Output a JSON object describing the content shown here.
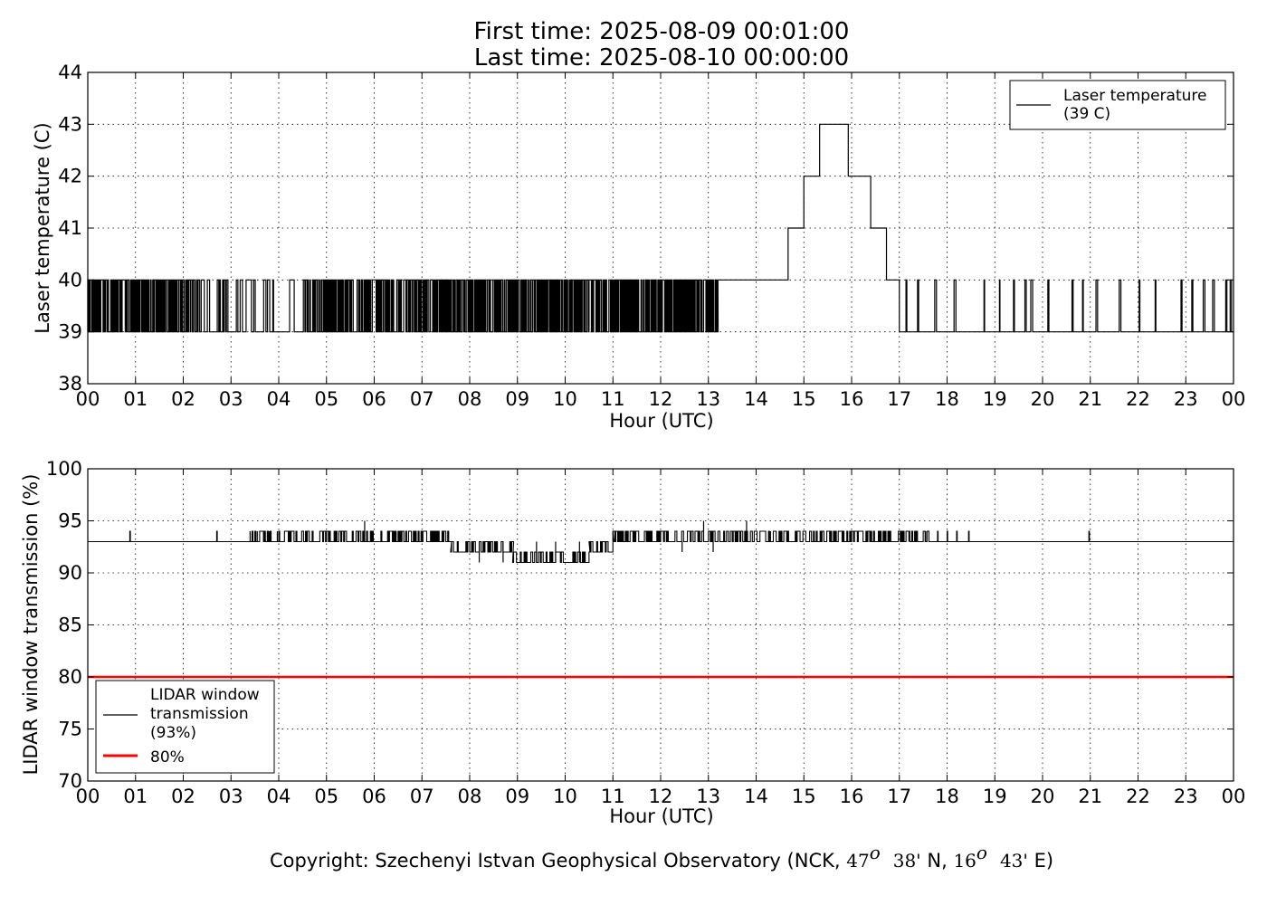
{
  "header": {
    "title_line1": "First time: 2025-08-09 00:01:00",
    "title_line2": "Last time: 2025-08-10 00:00:00"
  },
  "footer": {
    "copyright_prefix": "Copyright: Szechenyi Istvan Geophysical Observatory (NCK, ",
    "lat_deg": "47",
    "lat_sup": "o",
    "lat_min": "38'",
    "lat_hem": " N, ",
    "lon_deg": "16",
    "lon_sup": "o",
    "lon_min": "43'",
    "lon_hem": " E)"
  },
  "chart_data": [
    {
      "type": "line",
      "xlabel": "Hour (UTC)",
      "ylabel": "Laser temperature (C)",
      "xlim": [
        0,
        24
      ],
      "ylim": [
        38,
        44
      ],
      "x_ticks": [
        0,
        1,
        2,
        3,
        4,
        5,
        6,
        7,
        8,
        9,
        10,
        11,
        12,
        13,
        14,
        15,
        16,
        17,
        18,
        19,
        20,
        21,
        22,
        23,
        24
      ],
      "x_tick_labels": [
        "00",
        "01",
        "02",
        "03",
        "04",
        "05",
        "06",
        "07",
        "08",
        "09",
        "10",
        "11",
        "12",
        "13",
        "14",
        "15",
        "16",
        "17",
        "18",
        "19",
        "20",
        "21",
        "22",
        "23",
        "00"
      ],
      "y_ticks": [
        38,
        39,
        40,
        41,
        42,
        43,
        44
      ],
      "y_tick_labels": [
        "38",
        "39",
        "40",
        "41",
        "42",
        "43",
        "44"
      ],
      "grid": true,
      "legend_position": "top-right",
      "legend": [
        {
          "label_line1": "Laser temperature",
          "label_line2": "(39 C)",
          "color": "#000000"
        }
      ],
      "series": [
        {
          "name": "Laser temperature (39 C)",
          "color": "#000000",
          "pattern": "toggle",
          "low": 39,
          "high": 40,
          "segments": [
            {
              "start": 0.0,
              "end": 2.2,
              "density": 0.8
            },
            {
              "start": 2.2,
              "end": 3.3,
              "density": 0.45
            },
            {
              "start": 3.3,
              "end": 4.6,
              "density": 0.15
            },
            {
              "start": 4.6,
              "end": 7.3,
              "density": 0.75
            },
            {
              "start": 7.3,
              "end": 13.2,
              "density": 0.85
            }
          ],
          "points": [
            [
              13.2,
              40
            ],
            [
              14.67,
              40
            ],
            [
              14.67,
              41
            ],
            [
              15.0,
              41
            ],
            [
              15.0,
              42
            ],
            [
              15.33,
              42
            ],
            [
              15.33,
              43
            ],
            [
              15.93,
              43
            ],
            [
              15.93,
              42
            ],
            [
              16.4,
              42
            ],
            [
              16.4,
              41
            ],
            [
              16.73,
              41
            ],
            [
              16.73,
              40
            ],
            [
              17.0,
              40
            ],
            [
              17.0,
              39
            ]
          ],
          "tail": {
            "start": 17.0,
            "end": 24.0,
            "low": 39,
            "high": 40,
            "pulse_density": 0.3
          }
        }
      ]
    },
    {
      "type": "line",
      "xlabel": "Hour (UTC)",
      "ylabel": "LIDAR window transmission (%)",
      "xlim": [
        0,
        24
      ],
      "ylim": [
        70,
        100
      ],
      "x_ticks": [
        0,
        1,
        2,
        3,
        4,
        5,
        6,
        7,
        8,
        9,
        10,
        11,
        12,
        13,
        14,
        15,
        16,
        17,
        18,
        19,
        20,
        21,
        22,
        23,
        24
      ],
      "x_tick_labels": [
        "00",
        "01",
        "02",
        "03",
        "04",
        "05",
        "06",
        "07",
        "08",
        "09",
        "10",
        "11",
        "12",
        "13",
        "14",
        "15",
        "16",
        "17",
        "18",
        "19",
        "20",
        "21",
        "22",
        "23",
        "00"
      ],
      "y_ticks": [
        70,
        75,
        80,
        85,
        90,
        95,
        100
      ],
      "y_tick_labels": [
        "70",
        "75",
        "80",
        "85",
        "90",
        "95",
        "100"
      ],
      "grid": true,
      "legend_position": "bottom-left",
      "legend": [
        {
          "label_lines": [
            "LIDAR window",
            "transmission",
            "(93%)"
          ],
          "color": "#000000"
        },
        {
          "label_lines": [
            "80%"
          ],
          "color": "#ff0000"
        }
      ],
      "series": [
        {
          "name": "LIDAR window transmission (93%)",
          "color": "#000000",
          "baseline": 93,
          "noisy_segments": [
            {
              "start": 3.4,
              "end": 7.6,
              "low": 93,
              "high": 94,
              "density": 0.45
            },
            {
              "start": 7.6,
              "end": 8.9,
              "low": 92,
              "high": 93,
              "density": 0.45
            },
            {
              "start": 8.9,
              "end": 10.5,
              "low": 91,
              "high": 92,
              "density": 0.45
            },
            {
              "start": 10.5,
              "end": 11.0,
              "low": 92,
              "high": 93,
              "density": 0.45
            },
            {
              "start": 11.0,
              "end": 17.6,
              "low": 93,
              "high": 94,
              "density": 0.45
            }
          ],
          "spikes": [
            [
              0.88,
              94
            ],
            [
              2.7,
              94
            ],
            [
              3.4,
              94
            ],
            [
              3.55,
              94
            ],
            [
              3.8,
              94
            ],
            [
              3.97,
              94
            ],
            [
              5.8,
              95
            ],
            [
              8.2,
              91
            ],
            [
              8.7,
              91
            ],
            [
              9.4,
              91
            ],
            [
              9.8,
              91
            ],
            [
              10.3,
              91
            ],
            [
              11.0,
              94
            ],
            [
              12.45,
              92
            ],
            [
              12.9,
              95
            ],
            [
              13.1,
              92
            ],
            [
              13.8,
              95
            ],
            [
              14.3,
              94
            ],
            [
              17.2,
              94
            ],
            [
              17.55,
              94
            ],
            [
              17.8,
              94
            ],
            [
              18.0,
              94
            ],
            [
              18.2,
              94
            ],
            [
              18.45,
              94
            ],
            [
              20.97,
              94
            ]
          ]
        },
        {
          "name": "80%",
          "color": "#ff0000",
          "constant": 80
        }
      ]
    }
  ]
}
